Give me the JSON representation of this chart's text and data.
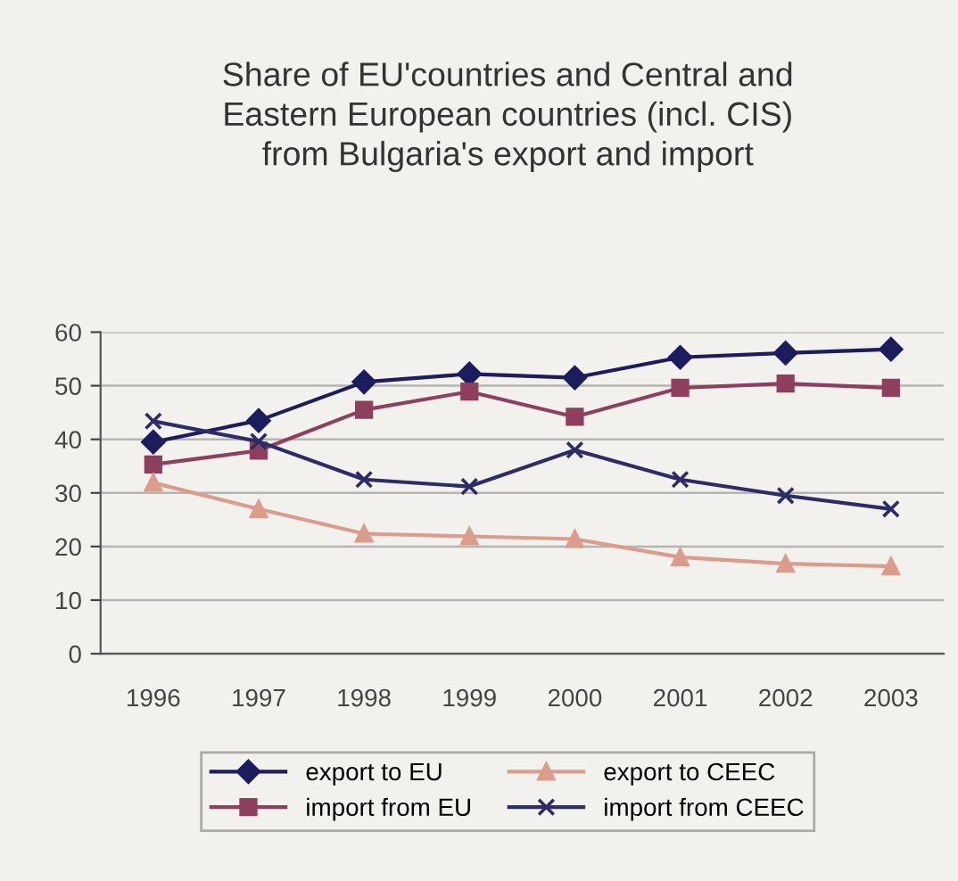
{
  "chart_data": {
    "type": "line",
    "title": "Share of EU'countries and Central and\nEastern European countries (incl. CIS)\nfrom Bulgaria's export and import",
    "categories": [
      "1996",
      "1997",
      "1998",
      "1999",
      "2000",
      "2001",
      "2002",
      "2003"
    ],
    "series": [
      {
        "name": "export to EU",
        "color": "#1c1c5e",
        "marker": "diamond",
        "values": [
          39.5,
          43.5,
          50.7,
          52.2,
          51.5,
          55.3,
          56.1,
          56.8
        ]
      },
      {
        "name": "import from EU",
        "color": "#8e3f5e",
        "marker": "square",
        "values": [
          35.3,
          37.9,
          45.5,
          48.9,
          44.2,
          49.6,
          50.4,
          49.6
        ]
      },
      {
        "name": "export to CEEC",
        "color": "#dc9c8c",
        "marker": "triangle",
        "values": [
          31.9,
          27.0,
          22.4,
          21.9,
          21.4,
          18.0,
          16.8,
          16.3
        ]
      },
      {
        "name": "import from CEEC",
        "color": "#2c2c66",
        "marker": "cross",
        "values": [
          43.4,
          39.6,
          32.5,
          31.2,
          38.0,
          32.5,
          29.5,
          27.0
        ]
      }
    ],
    "ylim": [
      0,
      60
    ],
    "yticks": [
      0,
      10,
      20,
      30,
      40,
      50,
      60
    ],
    "grid": "y",
    "legend": "bottom",
    "line_style": "solid"
  }
}
